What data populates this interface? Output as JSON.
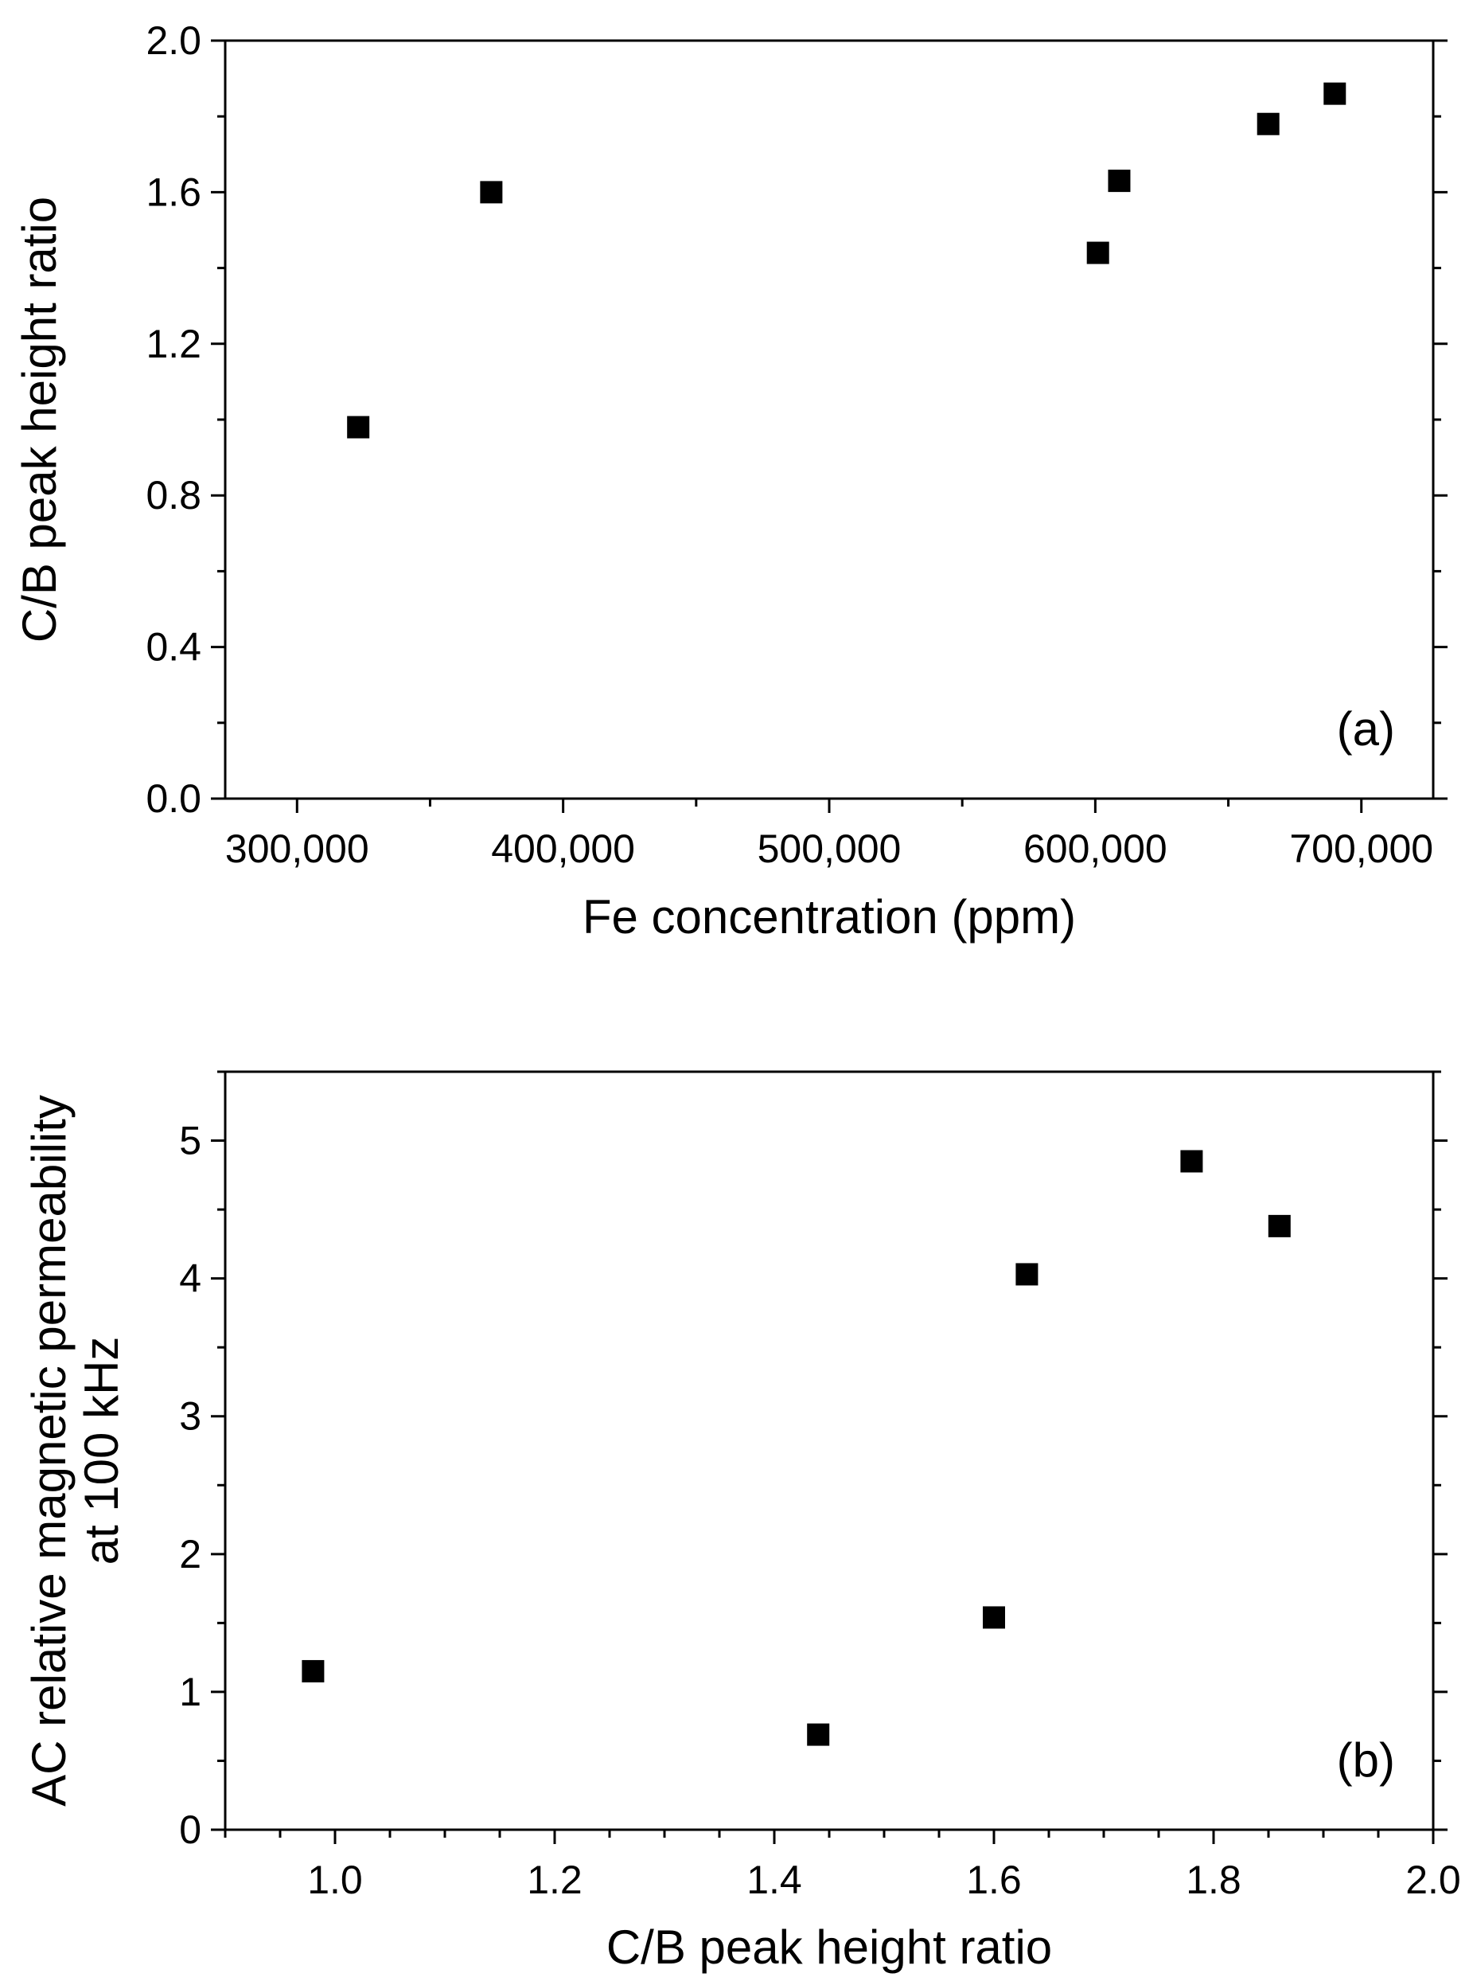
{
  "chart_data": [
    {
      "type": "scatter",
      "panel_label": "(a)",
      "xlabel": "Fe concentration (ppm)",
      "ylabel": [
        "C/B peak height ratio"
      ],
      "xlim": [
        273000,
        727000
      ],
      "ylim": [
        0.0,
        2.0
      ],
      "xticks": [
        300000,
        400000,
        500000,
        600000,
        700000
      ],
      "xtick_labels": [
        "300,000",
        "400,000",
        "500,000",
        "600,000",
        "700,000"
      ],
      "x_minor": 50000,
      "yticks": [
        0.0,
        0.4,
        0.8,
        1.2,
        1.6,
        2.0
      ],
      "ytick_labels": [
        "0.0",
        "0.4",
        "0.8",
        "1.2",
        "1.6",
        "2.0"
      ],
      "y_minor": 0.2,
      "grid": false,
      "marker": "filled-square",
      "color": "#000000",
      "series": [
        {
          "name": "",
          "x": [
            323000,
            373000,
            601000,
            609000,
            665000,
            690000
          ],
          "y": [
            0.98,
            1.6,
            1.44,
            1.63,
            1.78,
            1.86
          ]
        }
      ]
    },
    {
      "type": "scatter",
      "panel_label": "(b)",
      "xlabel": "C/B peak height ratio",
      "ylabel": [
        "AC relative magnetic permeability",
        "at 100 kHz"
      ],
      "xlim": [
        0.9,
        2.0
      ],
      "ylim": [
        0,
        5.5
      ],
      "xticks": [
        1.0,
        1.2,
        1.4,
        1.6,
        1.8,
        2.0
      ],
      "xtick_labels": [
        "1.0",
        "1.2",
        "1.4",
        "1.6",
        "1.8",
        "2.0"
      ],
      "x_minor": 0.05,
      "yticks": [
        0,
        1,
        2,
        3,
        4,
        5
      ],
      "ytick_labels": [
        "0",
        "1",
        "2",
        "3",
        "4",
        "5"
      ],
      "y_minor": 0.5,
      "grid": false,
      "marker": "filled-square",
      "color": "#000000",
      "series": [
        {
          "name": "",
          "x": [
            0.98,
            1.44,
            1.6,
            1.63,
            1.78,
            1.86
          ],
          "y": [
            1.15,
            0.69,
            1.54,
            4.03,
            4.85,
            4.38
          ]
        }
      ]
    }
  ]
}
